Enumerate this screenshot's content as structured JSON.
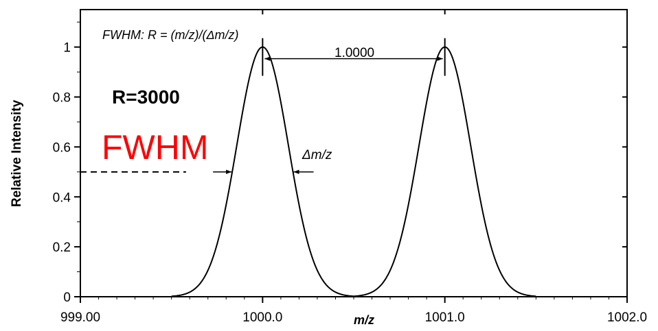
{
  "chart_data": {
    "type": "line",
    "xlabel": "m/z",
    "ylabel": "Relative Intensity",
    "xlim": [
      999.0,
      1002.0
    ],
    "ylim": [
      0,
      1.15
    ],
    "x_ticks": [
      {
        "value": 999.0,
        "label": "999.00"
      },
      {
        "value": 1000.0,
        "label": "1000.0"
      },
      {
        "value": 1001.0,
        "label": "1001.0"
      },
      {
        "value": 1002.0,
        "label": "1002.0"
      }
    ],
    "y_ticks": [
      {
        "value": 0,
        "label": "0"
      },
      {
        "value": 0.2,
        "label": "0.2"
      },
      {
        "value": 0.4,
        "label": "0.4"
      },
      {
        "value": 0.6,
        "label": "0.6"
      },
      {
        "value": 0.8,
        "label": "0.8"
      },
      {
        "value": 1.0,
        "label": "1"
      }
    ],
    "series": [
      {
        "peak_center": 1000.0,
        "fwhm": 0.3333,
        "height": 1.0
      },
      {
        "peak_center": 1001.0,
        "fwhm": 0.3333,
        "height": 1.0
      }
    ],
    "line_color": "#000000",
    "annotations": {
      "formula": "FWHM: R = (m/z)/(Δm/z)",
      "separation": "1.0000",
      "resolution": "R=3000",
      "fwhm": "FWHM",
      "delta_mz": "Δm/z",
      "half_max_level": 0.5,
      "half_max_line_end": 999.58
    },
    "highlight_color": "#ff0000",
    "grid": false
  }
}
